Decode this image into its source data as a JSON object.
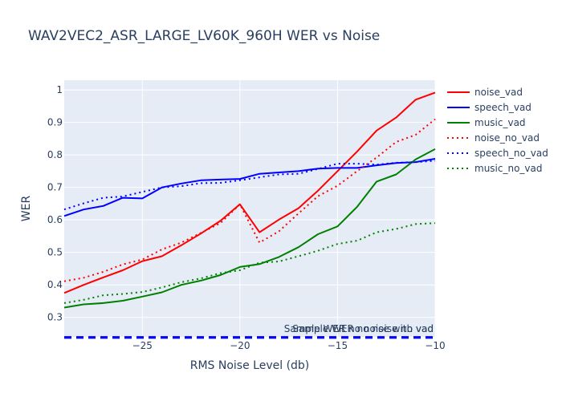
{
  "chart_data": {
    "type": "line",
    "title": "WAV2VEC2_ASR_LARGE_LV60K_960H WER vs Noise",
    "xlabel": "RMS Noise Level (db)",
    "ylabel": "WER",
    "xlim": [
      -29,
      -10
    ],
    "ylim": [
      0.24,
      1.03
    ],
    "xticks": [
      -25,
      -20,
      -15,
      -10
    ],
    "xtick_labels": [
      "−25",
      "−20",
      "−15",
      "−10"
    ],
    "yticks": [
      0.3,
      0.4,
      0.5,
      0.6,
      0.7,
      0.8,
      0.9,
      1
    ],
    "ytick_labels": [
      "0.3",
      "0.4",
      "0.5",
      "0.6",
      "0.7",
      "0.8",
      "0.9",
      "1"
    ],
    "grid": true,
    "legend_position": "right",
    "x": [
      -29,
      -28,
      -27,
      -26,
      -25,
      -24,
      -23,
      -22,
      -21,
      -20,
      -19,
      -18,
      -17,
      -16,
      -15,
      -14,
      -13,
      -12,
      -11,
      -10
    ],
    "series": [
      {
        "name": "noise_vad",
        "color": "#ff0000",
        "dash": "solid",
        "values": [
          0.375,
          0.4,
          0.423,
          0.445,
          0.473,
          0.488,
          0.522,
          0.558,
          0.597,
          0.648,
          0.562,
          0.601,
          0.636,
          0.69,
          0.75,
          0.81,
          0.875,
          0.915,
          0.97,
          0.992
        ]
      },
      {
        "name": "speech_vad",
        "color": "#0000ff",
        "dash": "solid",
        "values": [
          0.612,
          0.632,
          0.643,
          0.668,
          0.666,
          0.7,
          0.712,
          0.722,
          0.724,
          0.726,
          0.742,
          0.746,
          0.75,
          0.758,
          0.76,
          0.76,
          0.768,
          0.775,
          0.778,
          0.788
        ]
      },
      {
        "name": "music_vad",
        "color": "#008000",
        "dash": "solid",
        "values": [
          0.33,
          0.34,
          0.344,
          0.351,
          0.364,
          0.377,
          0.4,
          0.413,
          0.43,
          0.455,
          0.464,
          0.486,
          0.516,
          0.556,
          0.58,
          0.64,
          0.718,
          0.74,
          0.786,
          0.818
        ]
      },
      {
        "name": "noise_no_vad",
        "color": "#ff0000",
        "dash": "dot",
        "values": [
          0.411,
          0.422,
          0.44,
          0.463,
          0.478,
          0.509,
          0.53,
          0.56,
          0.59,
          0.648,
          0.53,
          0.565,
          0.62,
          0.673,
          0.705,
          0.75,
          0.792,
          0.84,
          0.862,
          0.91
        ]
      },
      {
        "name": "speech_no_vad",
        "color": "#0000ff",
        "dash": "dot",
        "values": [
          0.632,
          0.651,
          0.668,
          0.672,
          0.686,
          0.7,
          0.704,
          0.713,
          0.714,
          0.722,
          0.731,
          0.74,
          0.742,
          0.757,
          0.773,
          0.773,
          0.77,
          0.776,
          0.778,
          0.782
        ]
      },
      {
        "name": "music_no_vad",
        "color": "#008000",
        "dash": "dot",
        "values": [
          0.344,
          0.354,
          0.368,
          0.372,
          0.378,
          0.392,
          0.408,
          0.42,
          0.436,
          0.445,
          0.468,
          0.472,
          0.488,
          0.505,
          0.526,
          0.536,
          0.562,
          0.572,
          0.587,
          0.59
        ]
      }
    ],
    "baseline": {
      "y": 0.238,
      "color": "#0000ff",
      "dash": "dash"
    },
    "annotations": [
      "Sample WER no noise no vad",
      "Sample WER no noise with vad"
    ]
  }
}
